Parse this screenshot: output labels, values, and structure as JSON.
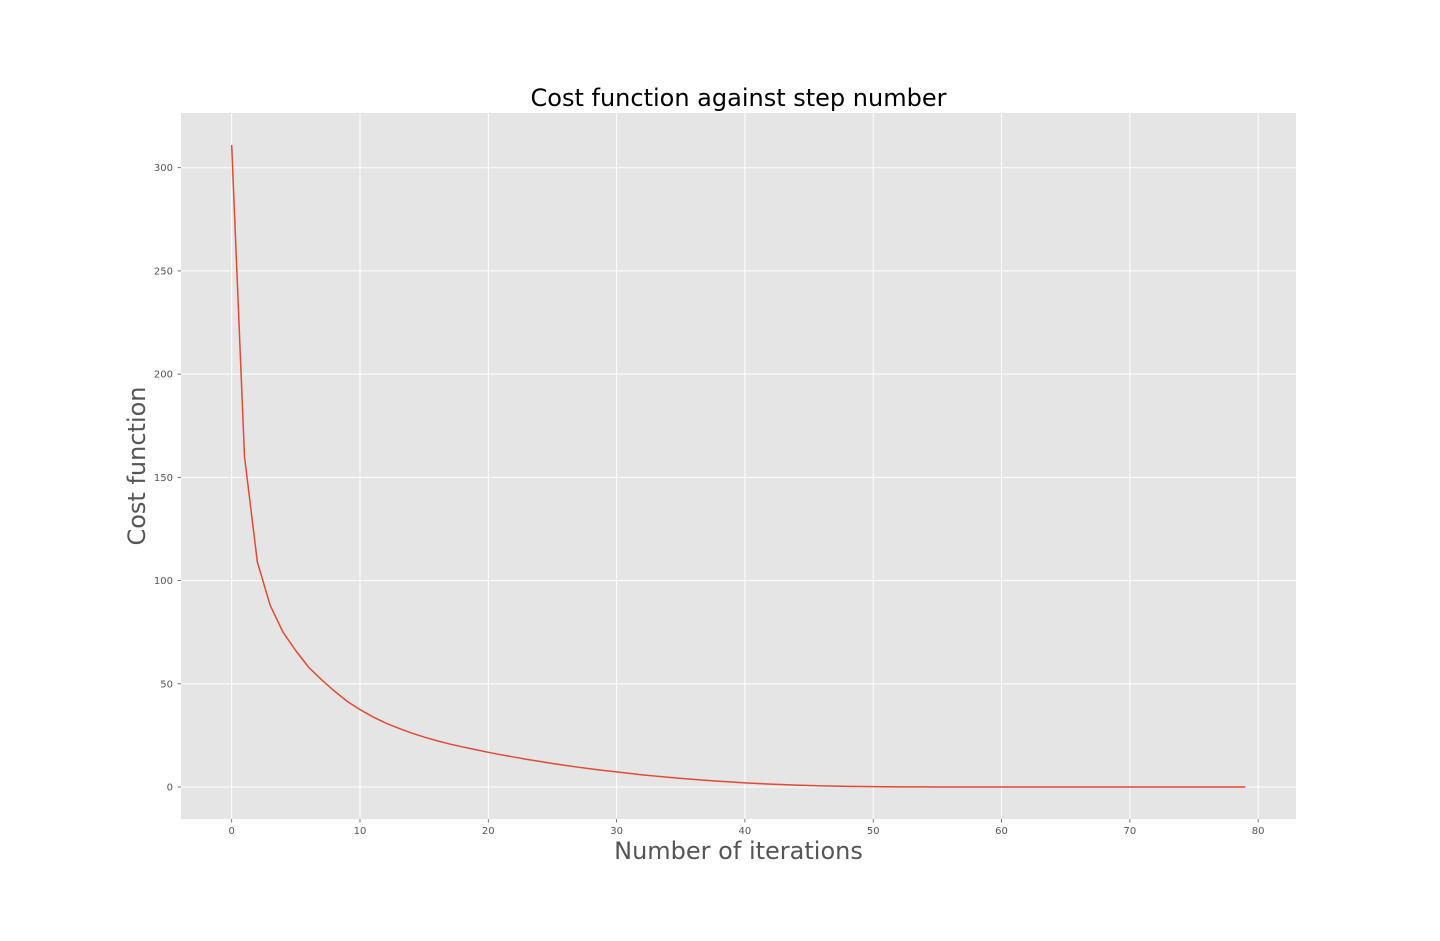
{
  "chart_data": {
    "type": "line",
    "title": "Cost function against step number",
    "xlabel": "Number of iterations",
    "ylabel": "Cost function",
    "xlim": [
      -3.95,
      82.95
    ],
    "ylim": [
      -15.5,
      326.5
    ],
    "xticks": [
      0,
      10,
      20,
      30,
      40,
      50,
      60,
      70,
      80
    ],
    "yticks": [
      0,
      50,
      100,
      150,
      200,
      250,
      300
    ],
    "grid": true,
    "style": "ggplot",
    "colors": {
      "background": "#E5E5E5",
      "grid": "#FFFFFF",
      "line": "#E24A33",
      "text": "#555555",
      "title": "#000000"
    },
    "series": [
      {
        "x": [
          0,
          1,
          2,
          3,
          4,
          5,
          6,
          7,
          8,
          9,
          10,
          11,
          12,
          13,
          14,
          15,
          16,
          17,
          18,
          19,
          20,
          21,
          22,
          23,
          24,
          25,
          26,
          27,
          28,
          29,
          30,
          31,
          32,
          33,
          34,
          35,
          36,
          37,
          38,
          39,
          40,
          41,
          42,
          43,
          44,
          45,
          46,
          47,
          48,
          49,
          50,
          51,
          52,
          53,
          54,
          55,
          56,
          57,
          58,
          59,
          60,
          61,
          62,
          63,
          64,
          65,
          66,
          67,
          68,
          69,
          70,
          71,
          72,
          73,
          74,
          75,
          76,
          77,
          78,
          79
        ],
        "values": [
          311,
          160,
          109,
          88,
          75,
          66,
          58,
          52,
          46.5,
          41.5,
          37.5,
          34,
          31,
          28.5,
          26.2,
          24.2,
          22.4,
          20.8,
          19.4,
          18.1,
          16.8,
          15.6,
          14.5,
          13.4,
          12.4,
          11.4,
          10.5,
          9.6,
          8.8,
          8.0,
          7.3,
          6.6,
          5.9,
          5.3,
          4.7,
          4.2,
          3.7,
          3.2,
          2.8,
          2.4,
          2.0,
          1.7,
          1.4,
          1.15,
          0.9,
          0.7,
          0.55,
          0.42,
          0.32,
          0.24,
          0.18,
          0.13,
          0.09,
          0.06,
          0.04,
          0.02,
          0.01,
          0.005,
          0,
          0,
          0,
          0,
          0,
          0,
          0,
          0,
          0,
          0,
          0,
          0,
          0,
          0,
          0,
          0,
          0,
          0,
          0,
          0,
          0,
          0
        ]
      }
    ]
  }
}
